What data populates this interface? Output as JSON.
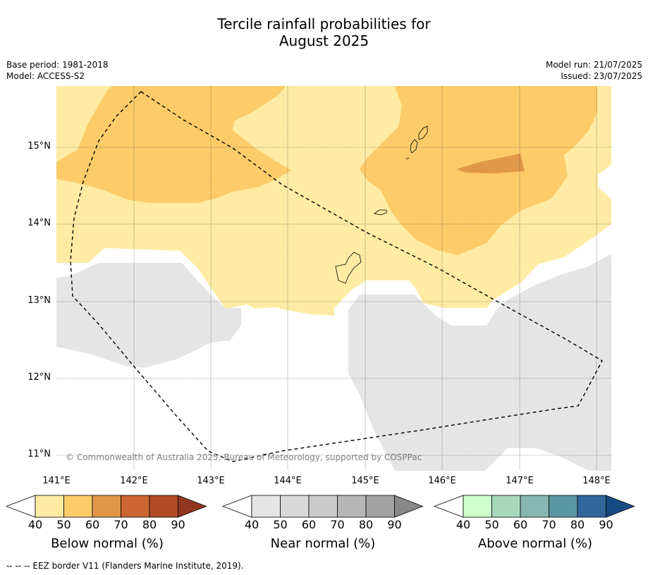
{
  "title_line1": "Tercile rainfall probabilities for",
  "title_line2": "August 2025",
  "meta": {
    "base_period": "Base period: 1981-2018",
    "model": "Model: ACCESS-S2",
    "model_run": "Model run: 21/07/2025",
    "issued": "Issued: 23/07/2025"
  },
  "map": {
    "lat_labels": [
      "15°N",
      "14°N",
      "13°N",
      "12°N",
      "11°N"
    ],
    "lon_labels": [
      "141°E",
      "142°E",
      "143°E",
      "144°E",
      "145°E",
      "146°E",
      "147°E",
      "148°E"
    ],
    "copyright": "© Commonwealth of Australia 2025, Bureau of Meteorology, supported by COSPPac"
  },
  "legend": {
    "ticks": [
      "40",
      "50",
      "60",
      "70",
      "80",
      "90"
    ],
    "below": {
      "label": "Below normal (%)",
      "colors": [
        "#ffeba3",
        "#fdcb69",
        "#e09747",
        "#cd6633",
        "#b34b28",
        "#93361f"
      ]
    },
    "near": {
      "label": "Near normal (%)",
      "colors": [
        "#e5e5e5",
        "#d8d8d8",
        "#cacaca",
        "#b6b6b6",
        "#a2a2a2",
        "#888888"
      ]
    },
    "above": {
      "label": "Above normal (%)",
      "colors": [
        "#ccffcc",
        "#a6d8bc",
        "#85b8b0",
        "#5b96a3",
        "#32669a",
        "#174a83"
      ]
    }
  },
  "footnote": "-- -- -- EEZ border V11 (Flanders Marine Institute, 2019)."
}
